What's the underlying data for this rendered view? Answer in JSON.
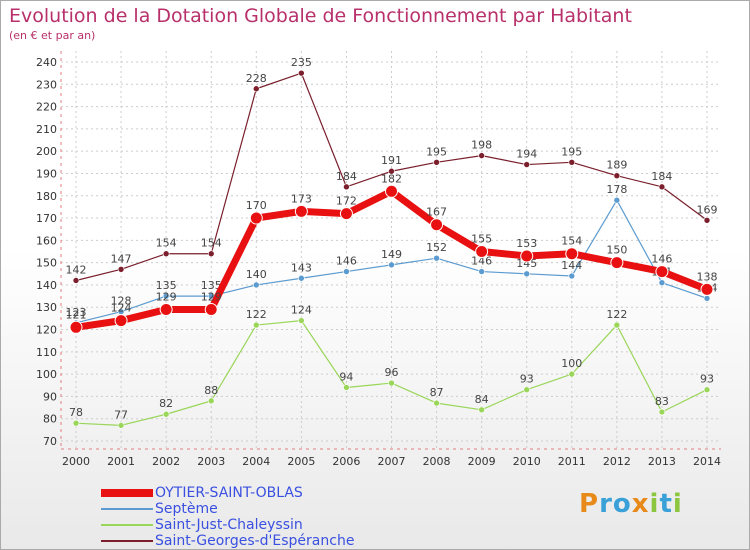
{
  "header": {
    "title": "Evolution de la Dotation Globale de Fonctionnement par Habitant",
    "subtitle": "(en € et par an)"
  },
  "colors": {
    "title": "#b8306a",
    "legend_text": "#3a50e0",
    "grid": "#cccccc"
  },
  "logo": {
    "text": "Proxiti",
    "letters": [
      {
        "ch": "P",
        "color": "#e88a1a"
      },
      {
        "ch": "r",
        "color": "#3aa0d8"
      },
      {
        "ch": "o",
        "color": "#3aa0d8"
      },
      {
        "ch": "x",
        "color": "#e88a1a"
      },
      {
        "ch": "i",
        "color": "#8cc63f"
      },
      {
        "ch": "t",
        "color": "#3aa0d8"
      },
      {
        "ch": "i",
        "color": "#8cc63f"
      }
    ]
  },
  "chart_data": {
    "type": "line",
    "title": "Evolution de la Dotation Globale de Fonctionnement par Habitant",
    "subtitle": "(en € et par an)",
    "x": [
      "2000",
      "2001",
      "2002",
      "2003",
      "2004",
      "2005",
      "2006",
      "2007",
      "2008",
      "2009",
      "2010",
      "2011",
      "2012",
      "2013",
      "2014"
    ],
    "ylim": [
      70,
      240
    ],
    "yticks": [
      70,
      80,
      90,
      100,
      110,
      120,
      130,
      140,
      150,
      160,
      170,
      180,
      190,
      200,
      210,
      220,
      230,
      240
    ],
    "grid": true,
    "legend_position": "bottom-left",
    "series": [
      {
        "name": "Saint-Georges-d'Espéranche",
        "color": "#7a1f2b",
        "width": 1.2,
        "marker": 3,
        "values": [
          142,
          147,
          154,
          154,
          228,
          235,
          184,
          191,
          195,
          198,
          194,
          195,
          189,
          184,
          169
        ]
      },
      {
        "name": "Septème",
        "color": "#5b9bd0",
        "width": 1.2,
        "marker": 3,
        "values": [
          123,
          128,
          135,
          135,
          140,
          143,
          146,
          149,
          152,
          146,
          145,
          144,
          178,
          141,
          134
        ]
      },
      {
        "name": "Saint-Just-Chaleyssin",
        "color": "#9ad65a",
        "width": 1.2,
        "marker": 3,
        "values": [
          78,
          77,
          82,
          88,
          122,
          124,
          94,
          96,
          87,
          84,
          93,
          100,
          122,
          83,
          93
        ]
      },
      {
        "name": "OYTIER-SAINT-OBLAS",
        "color": "#e81010",
        "width": 7,
        "marker": 6,
        "values": [
          121,
          124,
          129,
          129,
          170,
          173,
          172,
          182,
          167,
          155,
          153,
          154,
          150,
          146,
          138
        ]
      }
    ]
  }
}
